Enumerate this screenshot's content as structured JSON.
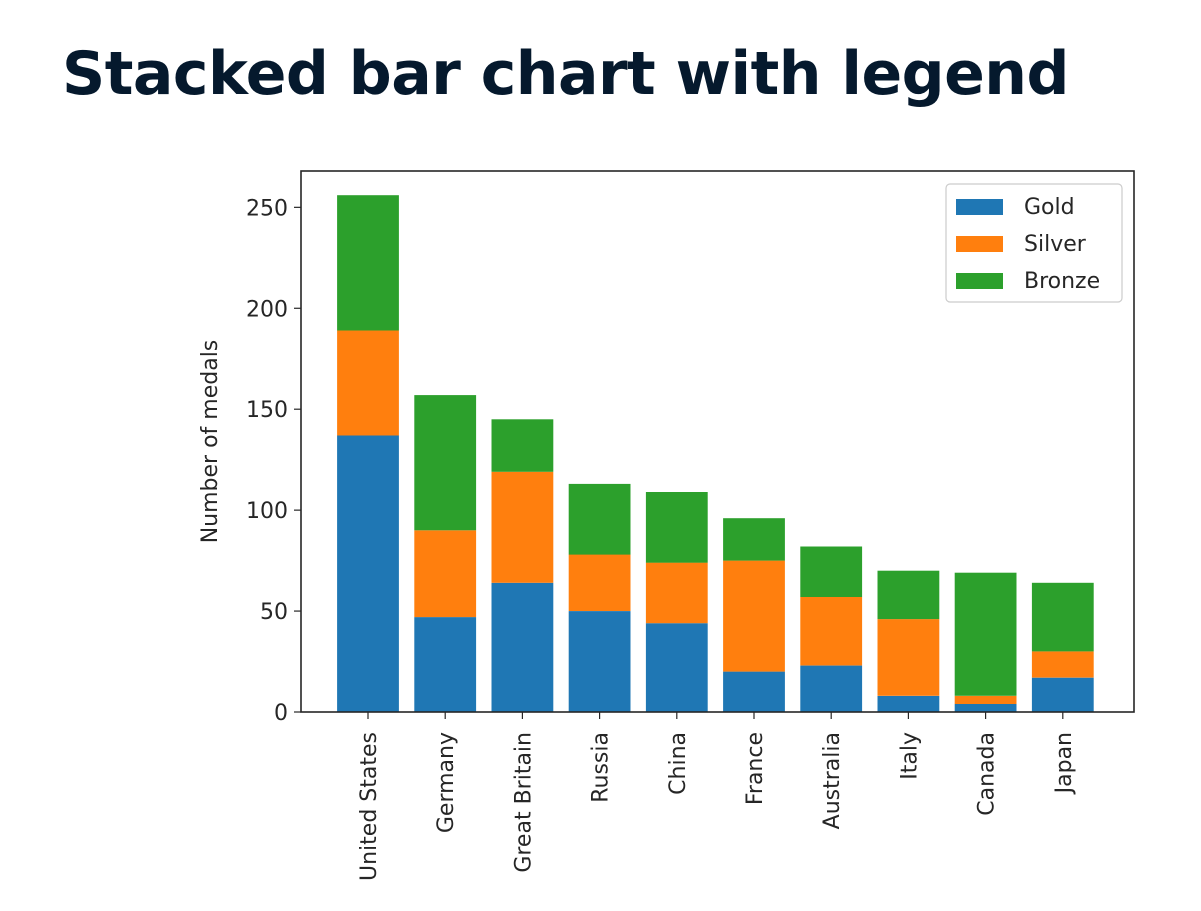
{
  "slide": {
    "title": "Stacked bar chart with legend"
  },
  "colors": {
    "gold": "#1f77b4",
    "silver": "#ff7f0e",
    "bronze": "#2ca02c"
  },
  "chart_data": {
    "type": "bar",
    "stacked": true,
    "categories": [
      "United States",
      "Germany",
      "Great Britain",
      "Russia",
      "China",
      "France",
      "Australia",
      "Italy",
      "Canada",
      "Japan"
    ],
    "series": [
      {
        "name": "Gold",
        "values": [
          137,
          47,
          64,
          50,
          44,
          20,
          23,
          8,
          4,
          17
        ]
      },
      {
        "name": "Silver",
        "values": [
          52,
          43,
          55,
          28,
          30,
          55,
          34,
          38,
          4,
          13
        ]
      },
      {
        "name": "Bronze",
        "values": [
          67,
          67,
          26,
          35,
          35,
          21,
          25,
          24,
          61,
          34
        ]
      }
    ],
    "xlabel": "",
    "ylabel": "Number of medals",
    "ylim": [
      0,
      268
    ],
    "yticks": [
      0,
      50,
      100,
      150,
      200,
      250
    ],
    "grid": false,
    "legend": "top-right"
  }
}
